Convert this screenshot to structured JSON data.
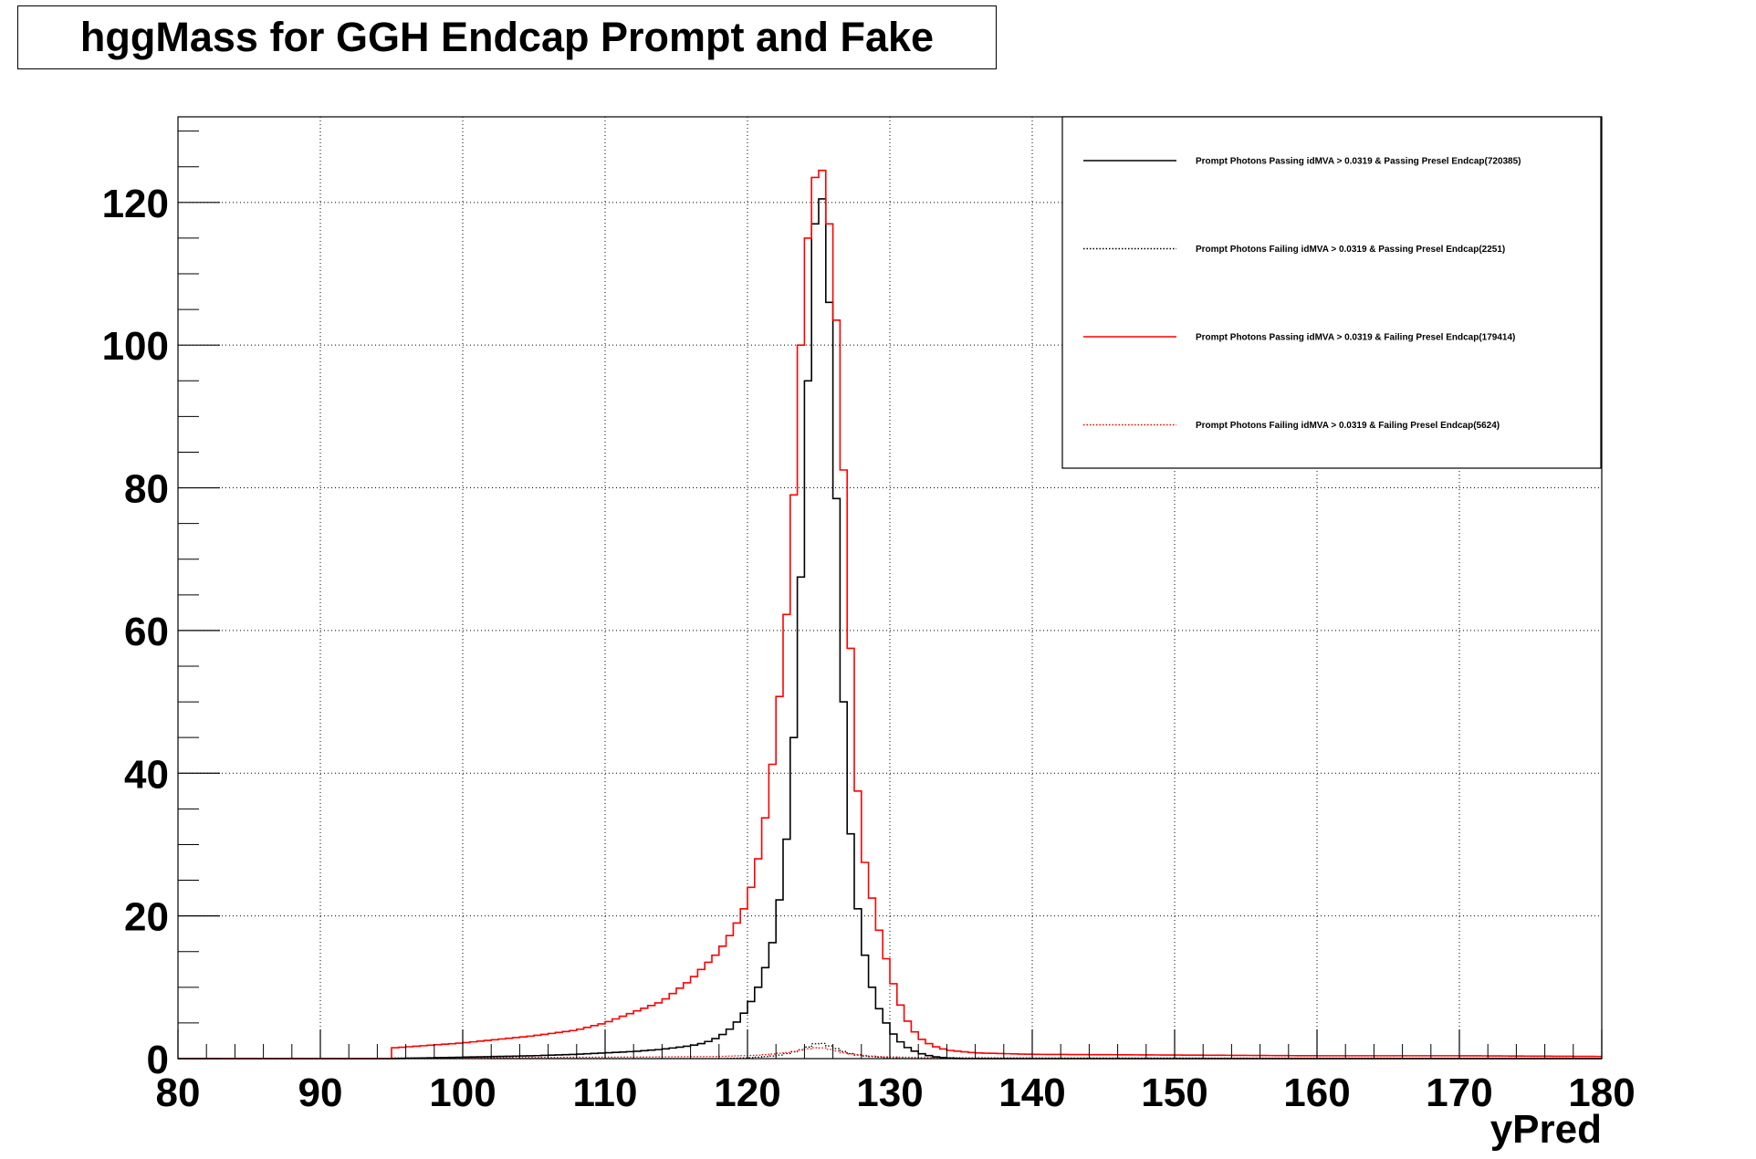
{
  "chart_data": {
    "type": "line",
    "title": "hggMass for GGH Endcap Prompt and Fake",
    "xlabel": "yPred",
    "ylabel": "",
    "xlim": [
      80,
      180
    ],
    "ylim": [
      0,
      132
    ],
    "grid": true,
    "legend_position": "top-right",
    "x_ticks": [
      "80",
      "90",
      "100",
      "110",
      "120",
      "130",
      "140",
      "150",
      "160",
      "170",
      "180"
    ],
    "y_ticks": [
      "0",
      "20",
      "40",
      "60",
      "80",
      "100",
      "120"
    ],
    "series": [
      {
        "name": "Prompt Photons Passing idMVA > 0.0319 & Passing Presel Endcap(720385)",
        "color": "#000000",
        "dash": "solid",
        "points": [
          [
            80,
            0
          ],
          [
            95,
            0
          ],
          [
            100,
            0.2
          ],
          [
            105,
            0.4
          ],
          [
            108,
            0.6
          ],
          [
            110,
            0.8
          ],
          [
            112,
            1.0
          ],
          [
            114,
            1.3
          ],
          [
            116,
            1.8
          ],
          [
            117,
            2.2
          ],
          [
            118,
            3
          ],
          [
            119,
            4.5
          ],
          [
            120,
            7
          ],
          [
            121,
            11
          ],
          [
            122,
            18
          ],
          [
            123,
            35
          ],
          [
            123.5,
            55
          ],
          [
            124,
            80
          ],
          [
            124.5,
            110
          ],
          [
            125,
            124
          ],
          [
            125.5,
            117
          ],
          [
            126,
            95
          ],
          [
            126.5,
            62
          ],
          [
            127,
            38
          ],
          [
            127.5,
            25
          ],
          [
            128,
            17
          ],
          [
            128.5,
            12
          ],
          [
            129,
            8
          ],
          [
            130,
            4
          ],
          [
            131,
            1.8
          ],
          [
            132,
            0.8
          ],
          [
            133,
            0.3
          ],
          [
            134,
            0.1
          ],
          [
            135,
            0
          ],
          [
            180,
            0
          ]
        ]
      },
      {
        "name": "Prompt Photons Failing idMVA > 0.0319 & Passing Presel Endcap(2251)",
        "color": "#000000",
        "dash": "dotted",
        "points": [
          [
            80,
            0
          ],
          [
            118,
            0
          ],
          [
            120,
            0.1
          ],
          [
            122,
            0.4
          ],
          [
            123,
            0.8
          ],
          [
            124,
            1.4
          ],
          [
            125,
            2.3
          ],
          [
            126,
            1.6
          ],
          [
            127,
            0.8
          ],
          [
            128,
            0.4
          ],
          [
            130,
            0.1
          ],
          [
            131,
            0
          ],
          [
            180,
            0
          ]
        ]
      },
      {
        "name": "Prompt Photons Passing idMVA > 0.0319 & Failing Presel Endcap(179414)",
        "color": "#ff0000",
        "dash": "solid",
        "points": [
          [
            80,
            0
          ],
          [
            95,
            0
          ],
          [
            95.1,
            1.5
          ],
          [
            100,
            2.2
          ],
          [
            105,
            3.2
          ],
          [
            108,
            4
          ],
          [
            110,
            5
          ],
          [
            112,
            6.5
          ],
          [
            114,
            8
          ],
          [
            116,
            11
          ],
          [
            118,
            15
          ],
          [
            119,
            18
          ],
          [
            120,
            22
          ],
          [
            121,
            30
          ],
          [
            122,
            45
          ],
          [
            123,
            68
          ],
          [
            123.5,
            90
          ],
          [
            124,
            110
          ],
          [
            124.5,
            120
          ],
          [
            125,
            127
          ],
          [
            125.5,
            122
          ],
          [
            126,
            112
          ],
          [
            126.5,
            95
          ],
          [
            127,
            70
          ],
          [
            127.5,
            45
          ],
          [
            128,
            30
          ],
          [
            129,
            20
          ],
          [
            130,
            12
          ],
          [
            131,
            6
          ],
          [
            132,
            3
          ],
          [
            133,
            1.8
          ],
          [
            134,
            1.2
          ],
          [
            136,
            0.8
          ],
          [
            140,
            0.6
          ],
          [
            150,
            0.5
          ],
          [
            160,
            0.4
          ],
          [
            170,
            0.4
          ],
          [
            180,
            0.3
          ]
        ]
      },
      {
        "name": "Prompt Photons Failing idMVA > 0.0319 & Failing Presel Endcap(5624)",
        "color": "#ff0000",
        "dash": "dotted",
        "points": [
          [
            80,
            0
          ],
          [
            95,
            0
          ],
          [
            95.1,
            0.1
          ],
          [
            110,
            0.2
          ],
          [
            118,
            0.3
          ],
          [
            121,
            0.5
          ],
          [
            123,
            0.9
          ],
          [
            124,
            1.3
          ],
          [
            125,
            1.6
          ],
          [
            126,
            1.2
          ],
          [
            127,
            0.7
          ],
          [
            129,
            0.3
          ],
          [
            132,
            0.15
          ],
          [
            140,
            0.1
          ],
          [
            180,
            0.05
          ]
        ]
      }
    ]
  }
}
